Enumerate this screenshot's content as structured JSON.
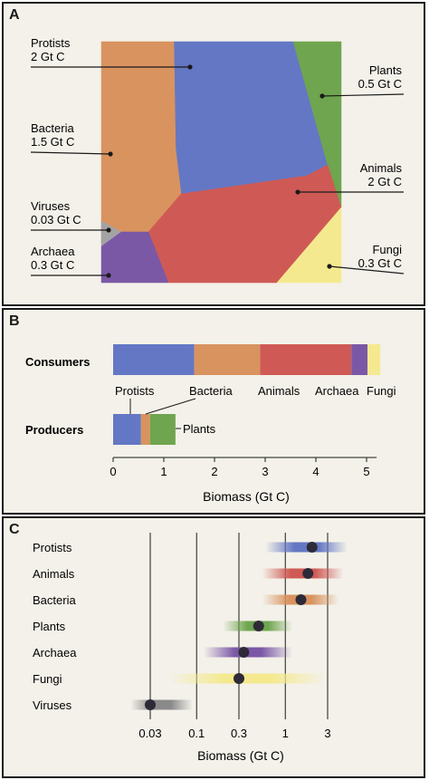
{
  "panels": {
    "a": {
      "letter": "A",
      "regions": [
        {
          "name": "Protists",
          "value": "2 Gt C",
          "color": "#6477c4"
        },
        {
          "name": "Plants",
          "value": "0.5 Gt C",
          "color": "#6fa54f"
        },
        {
          "name": "Bacteria",
          "value": "1.5 Gt C",
          "color": "#d9935f"
        },
        {
          "name": "Animals",
          "value": "2 Gt C",
          "color": "#cf5a55"
        },
        {
          "name": "Viruses",
          "value": "0.03 Gt C",
          "color": "#a3a3a3"
        },
        {
          "name": "Fungi",
          "value": "0.3 Gt C",
          "color": "#f5e98f"
        },
        {
          "name": "Archaea",
          "value": "0.3 Gt C",
          "color": "#7b58a6"
        }
      ]
    },
    "b": {
      "letter": "B",
      "xlabel": "Biomass (Gt C)",
      "ticks": [
        "0",
        "1",
        "2",
        "3",
        "4",
        "5"
      ]
    },
    "c": {
      "letter": "C",
      "xlabel": "Biomass (Gt C)",
      "ticks": [
        "0.03",
        "0.1",
        "0.3",
        "1",
        "3"
      ]
    }
  },
  "chart_data": [
    {
      "type": "area",
      "panel": "A",
      "description_kind": "voronoi treemap",
      "categories": [
        "Protists",
        "Plants",
        "Bacteria",
        "Animals",
        "Viruses",
        "Fungi",
        "Archaea"
      ],
      "values": [
        2,
        0.5,
        1.5,
        2,
        0.03,
        0.3,
        0.3
      ],
      "unit": "Gt C"
    },
    {
      "type": "bar",
      "panel": "B",
      "orientation": "horizontal-stacked",
      "categories": [
        "Consumers",
        "Producers"
      ],
      "series": [
        {
          "name": "Protists",
          "color": "#6477c4",
          "values": [
            1.6,
            0.55
          ]
        },
        {
          "name": "Bacteria",
          "color": "#d9935f",
          "values": [
            1.3,
            0.18
          ]
        },
        {
          "name": "Animals",
          "color": "#cf5a55",
          "values": [
            1.8,
            0
          ]
        },
        {
          "name": "Archaea",
          "color": "#7b58a6",
          "values": [
            0.32,
            0
          ]
        },
        {
          "name": "Fungi",
          "color": "#f5e98f",
          "values": [
            0.25,
            0
          ]
        },
        {
          "name": "Plants",
          "color": "#6fa54f",
          "values": [
            0,
            0.5
          ]
        }
      ],
      "xlabel": "Biomass (Gt C)",
      "xlim": [
        0,
        5.2
      ],
      "xticks": [
        0,
        1,
        2,
        3,
        4,
        5
      ]
    },
    {
      "type": "scatter",
      "panel": "C",
      "xscale": "log",
      "xlabel": "Biomass (Gt C)",
      "xlim": [
        0.02,
        6
      ],
      "xticks": [
        0.03,
        0.1,
        0.3,
        1,
        3
      ],
      "grid": true,
      "points": [
        {
          "name": "Protists",
          "value": 2,
          "low": 0.6,
          "high": 5,
          "color": "#6477c4"
        },
        {
          "name": "Animals",
          "value": 1.8,
          "low": 0.55,
          "high": 4.5,
          "color": "#cf5a55"
        },
        {
          "name": "Bacteria",
          "value": 1.5,
          "low": 0.55,
          "high": 4,
          "color": "#d9935f"
        },
        {
          "name": "Plants",
          "value": 0.5,
          "low": 0.2,
          "high": 1.2,
          "color": "#6fa54f"
        },
        {
          "name": "Archaea",
          "value": 0.34,
          "low": 0.12,
          "high": 1.2,
          "color": "#7b58a6"
        },
        {
          "name": "Fungi",
          "value": 0.3,
          "low": 0.05,
          "high": 2.8,
          "color": "#f5e98f"
        },
        {
          "name": "Viruses",
          "value": 0.03,
          "low": 0.018,
          "high": 0.09,
          "color": "#8a8a8a"
        }
      ]
    }
  ]
}
